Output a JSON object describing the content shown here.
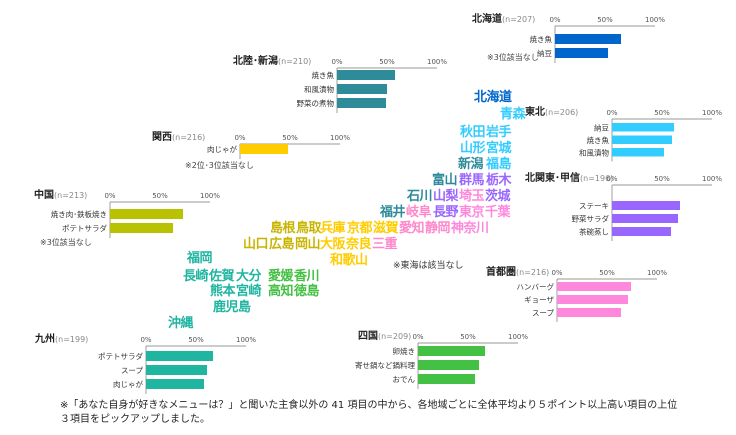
{
  "chart_data": [
    {
      "type": "bar",
      "region": "北海道",
      "n": "(n=207)",
      "ticks": [
        "0%",
        "50%",
        "100%"
      ],
      "categories": [
        "焼き魚",
        "納豆"
      ],
      "values": [
        66,
        53
      ],
      "note": "※3位該当なし",
      "color": "#0066cc"
    },
    {
      "type": "bar",
      "region": "北陸･新潟",
      "n": "(n=210)",
      "ticks": [
        "0%",
        "50%",
        "100%"
      ],
      "categories": [
        "焼き魚",
        "和風漬物",
        "野菜の煮物"
      ],
      "values": [
        58,
        50,
        49
      ],
      "color": "#2e8b99"
    },
    {
      "type": "bar",
      "region": "関西",
      "n": "(n=216)",
      "ticks": [
        "0%",
        "50%",
        "100%"
      ],
      "categories": [
        "肉じゃが"
      ],
      "values": [
        48
      ],
      "note": "※2位･3位該当なし",
      "color": "#ffcc00"
    },
    {
      "type": "bar",
      "region": "中国",
      "n": "(n=213)",
      "ticks": [
        "0%",
        "50%",
        "100%"
      ],
      "categories": [
        "焼き肉･鉄板焼き",
        "ポテトサラダ"
      ],
      "values": [
        73,
        63
      ],
      "note": "※3位該当なし",
      "color": "#b8c200"
    },
    {
      "type": "bar",
      "region": "九州",
      "n": "(n=199)",
      "ticks": [
        "0%",
        "50%",
        "100%"
      ],
      "categories": [
        "ポテトサラダ",
        "スープ",
        "肉じゃが"
      ],
      "values": [
        67,
        61,
        58
      ],
      "color": "#1fb5a0"
    },
    {
      "type": "bar",
      "region": "四国",
      "n": "(n=209)",
      "ticks": [
        "0%",
        "50%",
        "100%"
      ],
      "categories": [
        "卵焼き",
        "寄せ鍋など鍋料理",
        "おでん"
      ],
      "values": [
        67,
        61,
        57
      ],
      "color": "#44c044"
    },
    {
      "type": "bar",
      "region": "東北",
      "n": "(n=206)",
      "ticks": [
        "0%",
        "50%",
        "100%"
      ],
      "categories": [
        "納豆",
        "焼き魚",
        "和風漬物"
      ],
      "values": [
        62,
        60,
        52
      ],
      "color": "#33ccff"
    },
    {
      "type": "bar",
      "region": "北関東･甲信",
      "n": "(n=196)",
      "ticks": [
        "0%",
        "50%",
        "100%"
      ],
      "categories": [
        "ステーキ",
        "野菜サラダ",
        "茶碗蒸し"
      ],
      "values": [
        68,
        66,
        59
      ],
      "color": "#9966ff"
    },
    {
      "type": "bar",
      "region": "首都圏",
      "n": "(n=216)",
      "ticks": [
        "0%",
        "50%",
        "100%"
      ],
      "categories": [
        "ハンバーグ",
        "ギョーザ",
        "スープ"
      ],
      "values": [
        74,
        71,
        64
      ],
      "color": "#ff88dd"
    }
  ],
  "map_labels": [
    {
      "text": "北海道",
      "color": "#0066cc"
    },
    {
      "text": "青森",
      "color": "#33ccff"
    },
    {
      "text": "秋田",
      "color": "#33ccff"
    },
    {
      "text": "岩手",
      "color": "#33ccff"
    },
    {
      "text": "山形",
      "color": "#33ccff"
    },
    {
      "text": "宮城",
      "color": "#33ccff"
    },
    {
      "text": "新潟",
      "color": "#2e8b99"
    },
    {
      "text": "福島",
      "color": "#33ccff"
    },
    {
      "text": "富山",
      "color": "#2e8b99"
    },
    {
      "text": "群馬",
      "color": "#9966ff"
    },
    {
      "text": "栃木",
      "color": "#9966ff"
    },
    {
      "text": "石川",
      "color": "#2e8b99"
    },
    {
      "text": "山梨",
      "color": "#9966ff"
    },
    {
      "text": "埼玉",
      "color": "#ff88dd"
    },
    {
      "text": "茨城",
      "color": "#9966ff"
    },
    {
      "text": "福井",
      "color": "#2e8b99"
    },
    {
      "text": "岐阜",
      "color": "#ff88cc"
    },
    {
      "text": "長野",
      "color": "#9966ff"
    },
    {
      "text": "東京",
      "color": "#ff88dd"
    },
    {
      "text": "千葉",
      "color": "#ff88dd"
    },
    {
      "text": "島根",
      "color": "#c8b400"
    },
    {
      "text": "鳥取",
      "color": "#c8b400"
    },
    {
      "text": "兵庫",
      "color": "#ffcc00"
    },
    {
      "text": "京都",
      "color": "#ffcc00"
    },
    {
      "text": "滋賀",
      "color": "#ffcc00"
    },
    {
      "text": "愛知",
      "color": "#ff88cc"
    },
    {
      "text": "静岡",
      "color": "#ff88cc"
    },
    {
      "text": "神奈川",
      "color": "#ff88dd"
    },
    {
      "text": "山口",
      "color": "#c8b400"
    },
    {
      "text": "広島",
      "color": "#c8b400"
    },
    {
      "text": "岡山",
      "color": "#c8b400"
    },
    {
      "text": "大阪",
      "color": "#ffcc00"
    },
    {
      "text": "奈良",
      "color": "#ffcc00"
    },
    {
      "text": "三重",
      "color": "#ff88cc"
    },
    {
      "text": "和歌山",
      "color": "#ffcc00"
    },
    {
      "text": "福岡",
      "color": "#1fb5a0"
    },
    {
      "text": "長崎",
      "color": "#1fb5a0"
    },
    {
      "text": "佐賀",
      "color": "#1fb5a0"
    },
    {
      "text": "大分",
      "color": "#1fb5a0"
    },
    {
      "text": "愛媛",
      "color": "#44c044"
    },
    {
      "text": "香川",
      "color": "#44c044"
    },
    {
      "text": "熊本",
      "color": "#1fb5a0"
    },
    {
      "text": "宮崎",
      "color": "#1fb5a0"
    },
    {
      "text": "高知",
      "color": "#44c044"
    },
    {
      "text": "徳島",
      "color": "#44c044"
    },
    {
      "text": "鹿児島",
      "color": "#1fb5a0"
    },
    {
      "text": "沖縄",
      "color": "#1fb5a0"
    }
  ],
  "tokai_note": "※東海は該当なし",
  "footnote": "※「あなた自身が好きなメニューは？」と聞いた主食以外の 41 項目の中から、各地域ごとに全体平均より５ポイント以上高い項目の上位３項目をピックアップしました。"
}
